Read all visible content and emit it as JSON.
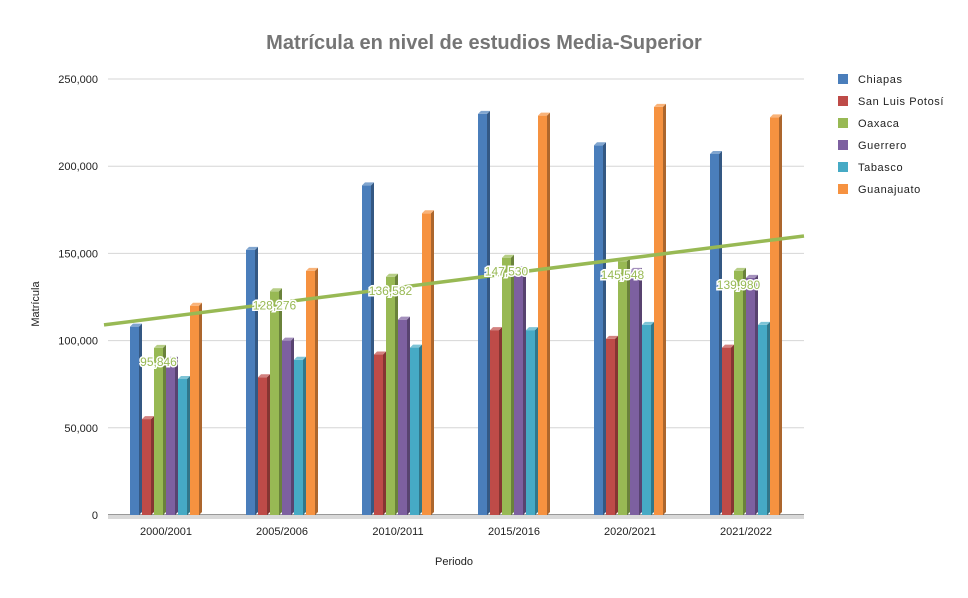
{
  "chart_data": {
    "type": "bar",
    "title": "Matrícula en nivel de estudios Media-Superior",
    "xlabel": "Periodo",
    "ylabel": "Matrícula",
    "ylim": [
      0,
      250000
    ],
    "yticks": [
      0,
      50000,
      100000,
      150000,
      200000,
      250000
    ],
    "ytick_labels": [
      "0",
      "50,000",
      "100,000",
      "150,000",
      "200,000",
      "250,000"
    ],
    "grid": true,
    "legend_position": "right",
    "categories": [
      "2000/2001",
      "2005/2006",
      "2010/2011",
      "2015/2016",
      "2020/2021",
      "2021/2022"
    ],
    "series": [
      {
        "name": "Chiapas",
        "color": "#4a7ebb",
        "values": [
          108000,
          152000,
          189000,
          230000,
          212000,
          207000
        ]
      },
      {
        "name": "San Luis Potosí",
        "color": "#be4b48",
        "values": [
          55000,
          79000,
          92000,
          106000,
          101000,
          96000
        ]
      },
      {
        "name": "Oaxaca",
        "color": "#98b954",
        "values": [
          95846,
          128276,
          136582,
          147530,
          145548,
          139980
        ],
        "data_labels": [
          "95,846",
          "128,276",
          "136,582",
          "147,530",
          "145,548",
          "139,980"
        ]
      },
      {
        "name": "Guerrero",
        "color": "#7d60a0",
        "values": [
          89000,
          100000,
          112000,
          141000,
          140000,
          136000
        ]
      },
      {
        "name": "Tabasco",
        "color": "#46aac5",
        "values": [
          78000,
          89000,
          96000,
          106000,
          109000,
          109000
        ]
      },
      {
        "name": "Guanajuato",
        "color": "#f69240",
        "values": [
          120000,
          140000,
          173000,
          229000,
          234000,
          228000
        ]
      }
    ],
    "trendline": {
      "series": "Oaxaca",
      "color": "#98b954",
      "start_value": 109000,
      "end_value": 160000
    }
  }
}
